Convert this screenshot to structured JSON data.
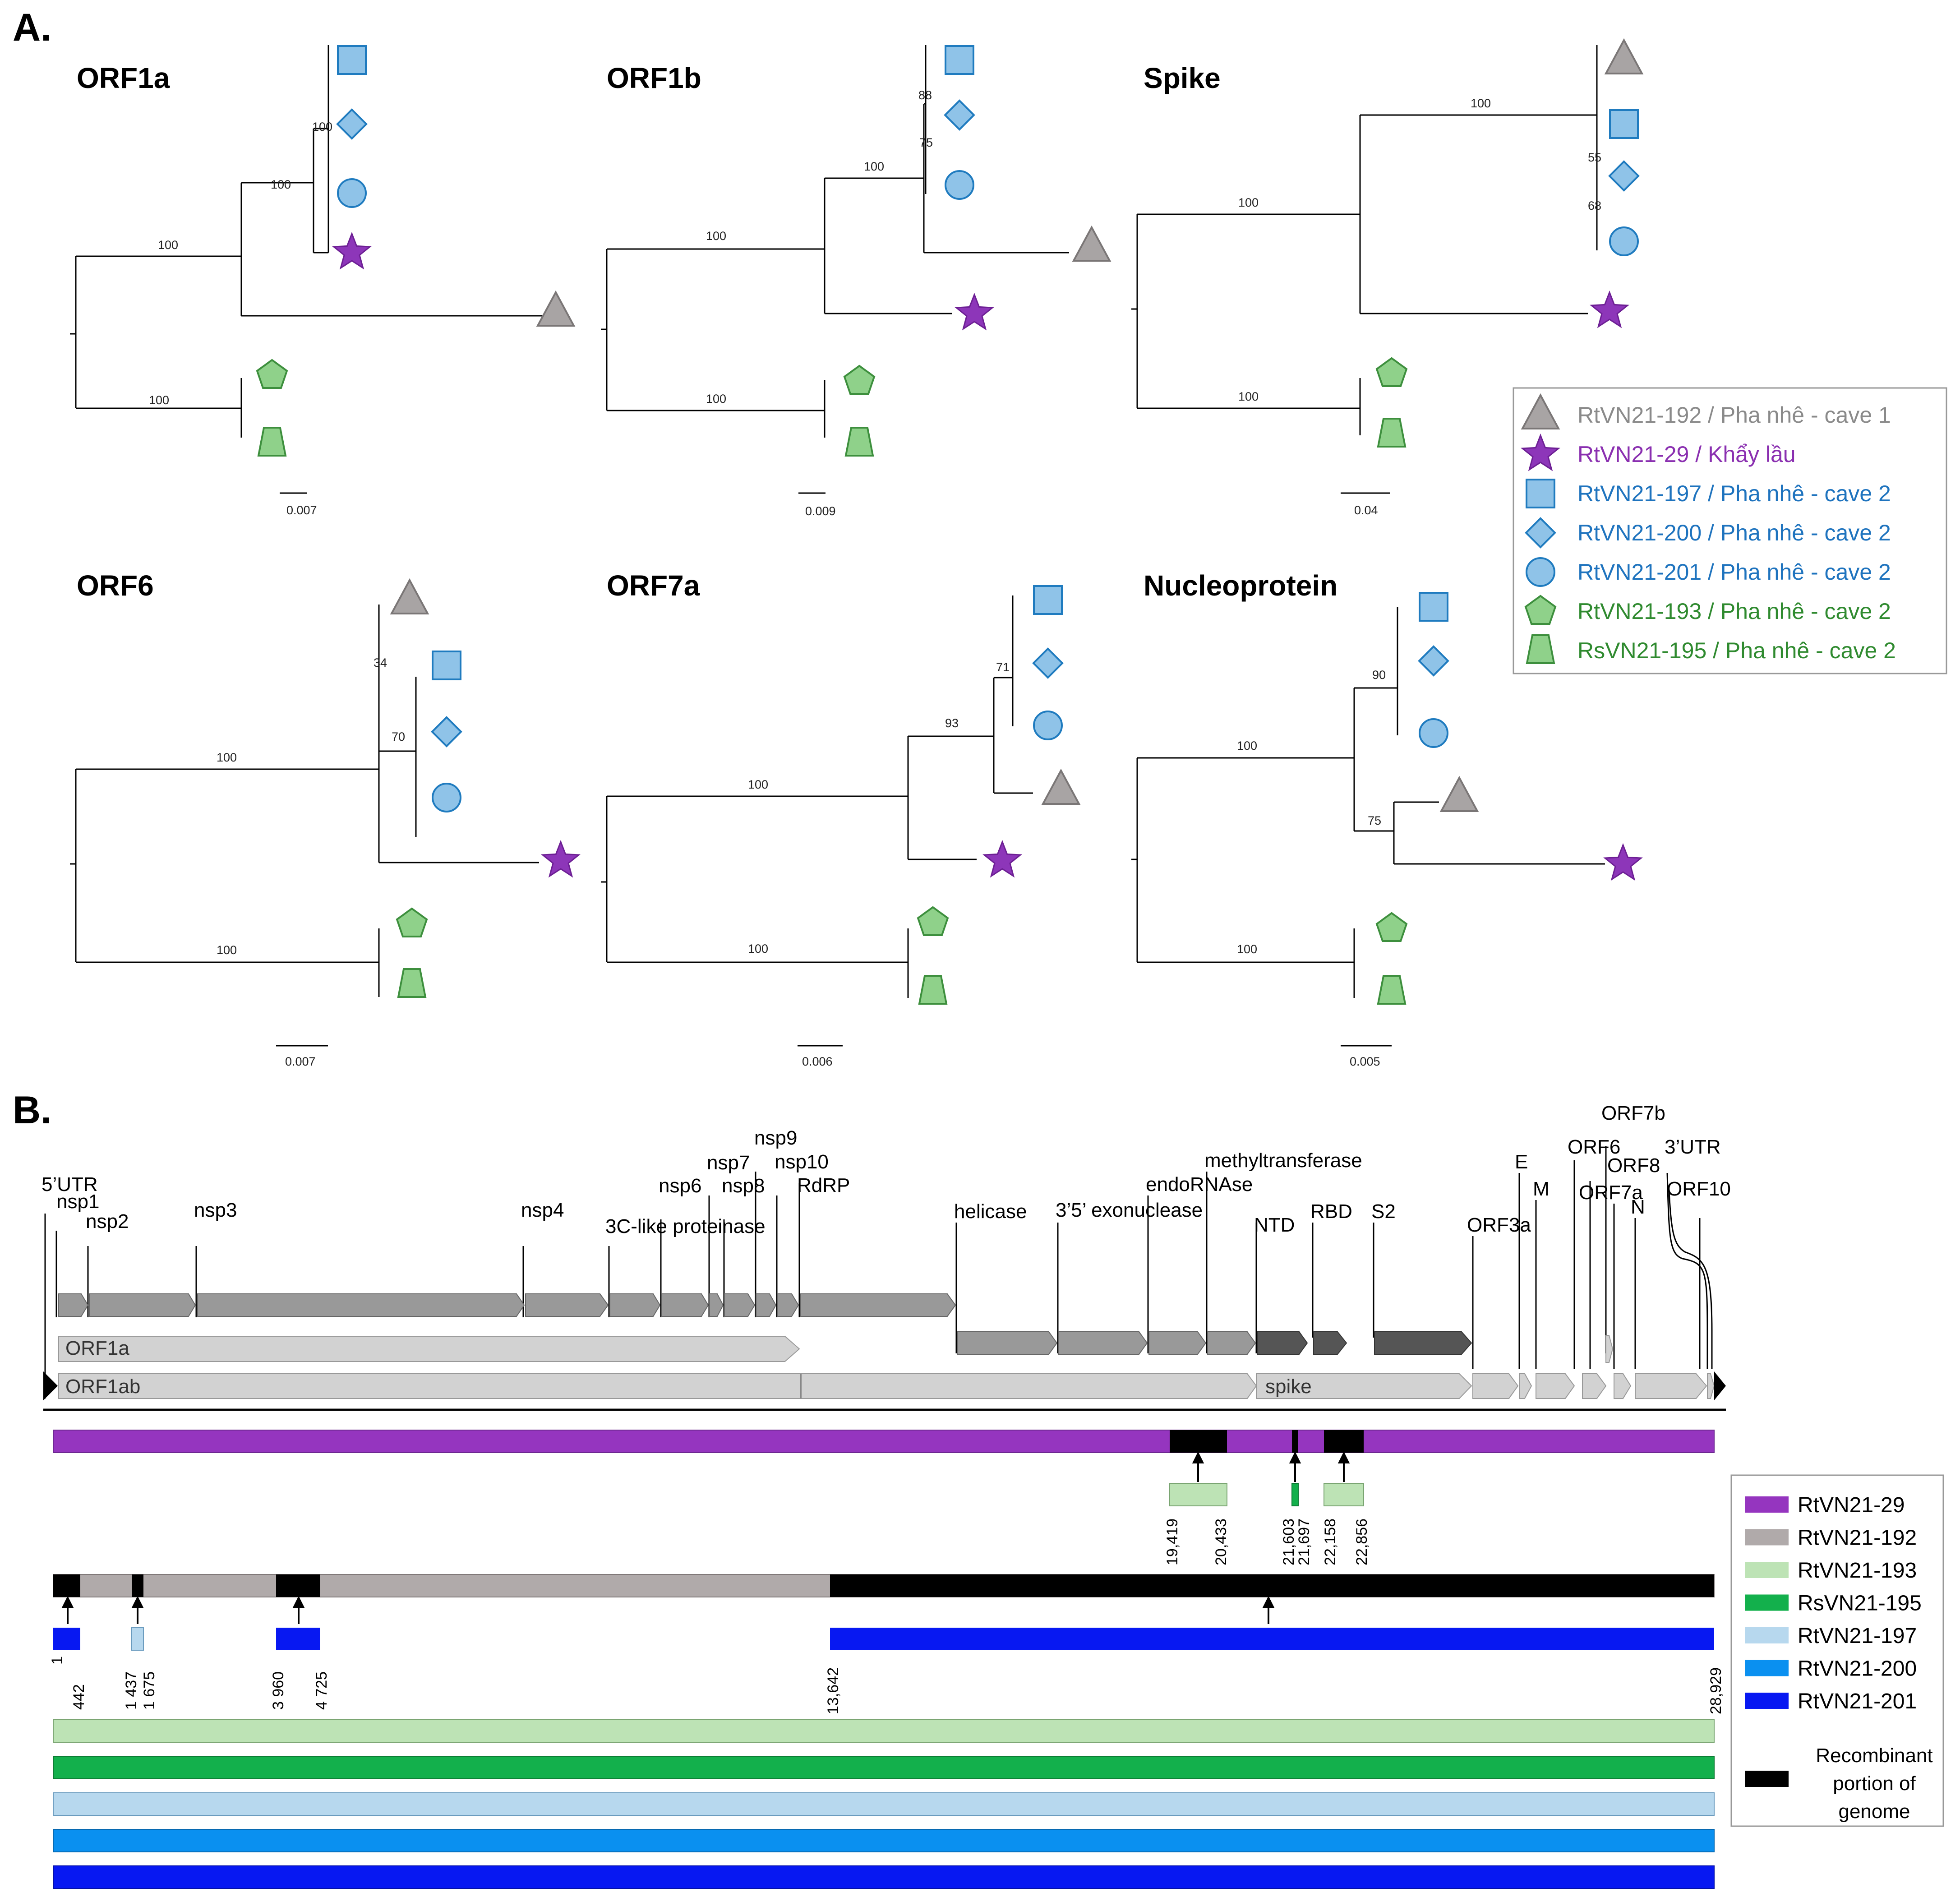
{
  "panels": {
    "a": "A.",
    "b": "B."
  },
  "strains": {
    "s192": {
      "text": "RtVN21-192 / Pha nhê - cave 1",
      "color": "#8a8a8a",
      "fill": "#a8a4a4",
      "stroke": "#7a7676"
    },
    "s29": {
      "text": "RtVN21-29 / Khẩy lầu",
      "color": "#8a2fb0",
      "fill": "#8d36b9",
      "stroke": "#6d1f94"
    },
    "s197": {
      "text": "RtVN21-197 / Pha nhê - cave 2",
      "color": "#1e73be",
      "fill": "#8fc3e8",
      "stroke": "#1f7bbf"
    },
    "s200": {
      "text": "RtVN21-200 / Pha nhê - cave 2",
      "color": "#1e73be",
      "fill": "#8fc3e8",
      "stroke": "#1f7bbf"
    },
    "s201": {
      "text": "RtVN21-201 / Pha nhê - cave 2",
      "color": "#1e73be",
      "fill": "#8fc3e8",
      "stroke": "#1f7bbf"
    },
    "s193": {
      "text": "RtVN21-193 / Pha nhê - cave 2",
      "color": "#2f8a2f",
      "fill": "#8fd18a",
      "stroke": "#3d8f3d"
    },
    "s195": {
      "text": "RsVN21-195 / Pha nhê - cave 2",
      "color": "#2f8a2f",
      "fill": "#8fd18a",
      "stroke": "#3d8f3d"
    }
  },
  "trees": [
    {
      "title": "ORF1a",
      "scale": "0.007",
      "supports": [
        "100",
        "100",
        "100",
        "100"
      ]
    },
    {
      "title": "ORF1b",
      "scale": "0.009",
      "supports": [
        "88",
        "75",
        "100",
        "100",
        "100"
      ]
    },
    {
      "title": "Spike",
      "scale": "0.04",
      "supports": [
        "100",
        "55",
        "68",
        "100",
        "100"
      ]
    },
    {
      "title": "ORF6",
      "scale": "0.007",
      "supports": [
        "34",
        "70",
        "100",
        "100"
      ]
    },
    {
      "title": "ORF7a",
      "scale": "0.006",
      "supports": [
        "71",
        "93",
        "100",
        "100"
      ]
    },
    {
      "title": "Nucleoprotein",
      "scale": "0.005",
      "supports": [
        "90",
        "100",
        "75",
        "100"
      ]
    }
  ],
  "genome": {
    "labels": {
      "utr5": "5’UTR",
      "nsp1": "nsp1",
      "nsp2": "nsp2",
      "nsp3": "nsp3",
      "nsp4": "nsp4",
      "clp": "3C-like proteinase",
      "nsp6": "nsp6",
      "nsp7": "nsp7",
      "nsp8": "nsp8",
      "nsp9": "nsp9",
      "nsp10": "nsp10",
      "rdrp": "RdRP",
      "helicase": "helicase",
      "exo": "3’5’ exonuclease",
      "endo": "endoRNAse",
      "mtase": "methyltransferase",
      "ntd": "NTD",
      "rbd": "RBD",
      "s2": "S2",
      "orf3a": "ORF3a",
      "e": "E",
      "m": "M",
      "orf6": "ORF6",
      "orf7b": "ORF7b",
      "orf8": "ORF8",
      "orf7a": "ORF7a",
      "n": "N",
      "utr3": "3’UTR",
      "orf10": "ORF10"
    },
    "orf1a": "ORF1a",
    "orf1ab": "ORF1ab",
    "spike": "spike"
  },
  "recombination": {
    "r29_positions": [
      "19,419",
      "20,433",
      "21,603",
      "21,697",
      "22,158",
      "22,856"
    ],
    "r192_positions": [
      "1",
      "442",
      "1 437",
      "1 675",
      "3 960",
      "4 725",
      "13,642",
      "28,929"
    ]
  },
  "legend_b": {
    "items": [
      {
        "label": "RtVN21-29",
        "color": "#9535bf"
      },
      {
        "label": "RtVN21-192",
        "color": "#b0aaaa"
      },
      {
        "label": "RtVN21-193",
        "color": "#bde3b5"
      },
      {
        "label": "RsVN21-195",
        "color": "#13b04c"
      },
      {
        "label": "RtVN21-197",
        "color": "#b7d8ee"
      },
      {
        "label": "RtVN21-200",
        "color": "#0a90f0"
      },
      {
        "label": "RtVN21-201",
        "color": "#0718f2"
      }
    ],
    "recombinant": [
      "Recombinant",
      "portion of",
      "genome"
    ],
    "recombinant_color": "#000000"
  }
}
